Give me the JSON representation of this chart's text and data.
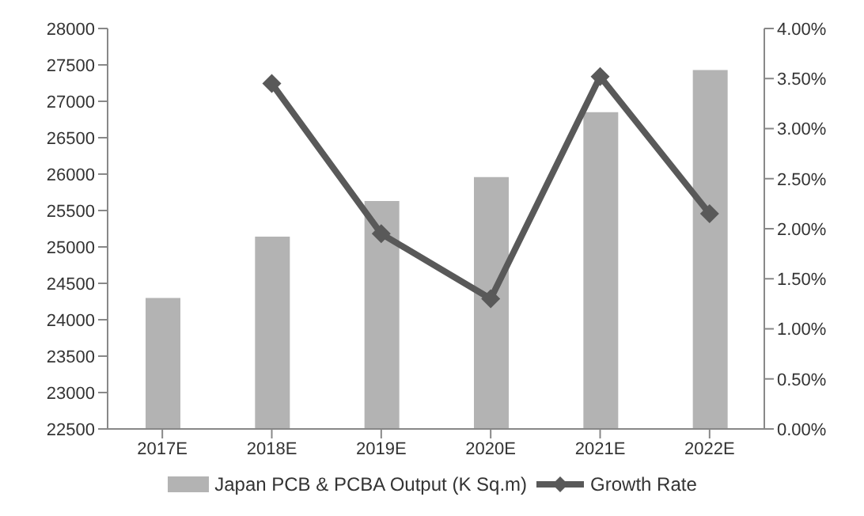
{
  "chart_data": {
    "type": "bar",
    "categories": [
      "2017E",
      "2018E",
      "2019E",
      "2020E",
      "2021E",
      "2022E"
    ],
    "series": [
      {
        "name": "Japan PCB & PCBA Output (K Sq.m)",
        "color": "#b3b3b3",
        "values": [
          24300,
          25140,
          25630,
          25960,
          26850,
          27430
        ]
      },
      {
        "name": "Growth Rate",
        "type": "line",
        "axis": "y2",
        "color": "#595959",
        "marker": "diamond",
        "values": [
          null,
          3.45,
          1.95,
          1.3,
          3.52,
          2.15
        ]
      }
    ],
    "ylim": [
      22500,
      28000
    ],
    "yticks": [
      22500,
      23000,
      23500,
      24000,
      24500,
      25000,
      25500,
      26000,
      26500,
      27000,
      27500,
      28000
    ],
    "y2lim": [
      0,
      4
    ],
    "y2ticks": [
      {
        "value": 0,
        "label": "0.00%"
      },
      {
        "value": 0.5,
        "label": "0.50%"
      },
      {
        "value": 1,
        "label": "1.00%"
      },
      {
        "value": 1.5,
        "label": "1.50%"
      },
      {
        "value": 2,
        "label": "2.00%"
      },
      {
        "value": 2.5,
        "label": "2.50%"
      },
      {
        "value": 3,
        "label": "3.00%"
      },
      {
        "value": 3.5,
        "label": "3.50%"
      },
      {
        "value": 4,
        "label": "4.00%"
      }
    ],
    "grid": false,
    "legend": "bottom"
  }
}
